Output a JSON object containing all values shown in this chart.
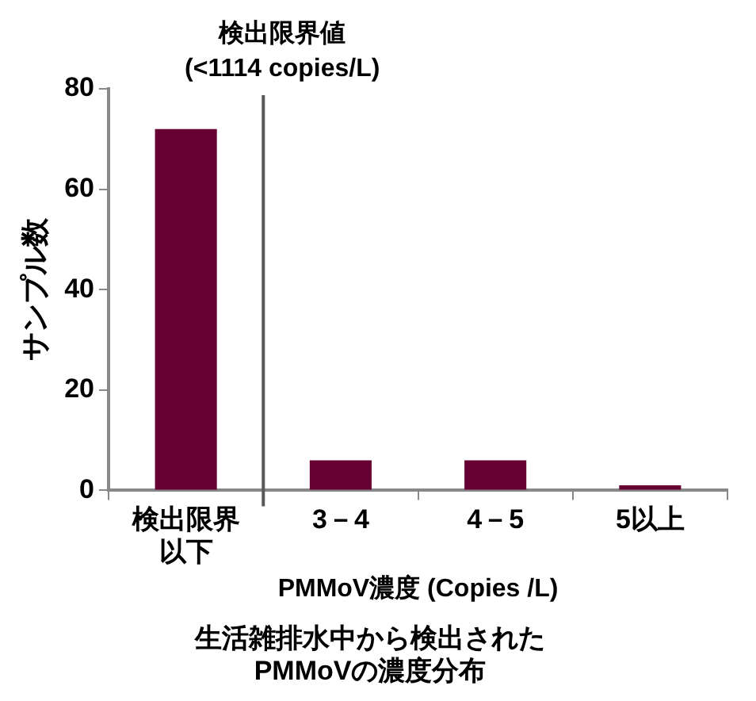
{
  "chart_data": {
    "type": "bar",
    "title": "生活雑排水中から検出された\nPMMoVの濃度分布",
    "xlabel": "PMMoV濃度 (Copies /L)",
    "ylabel": "サンプル数",
    "categories": [
      "検出限界以下",
      "3－4",
      "4－5",
      "5以上"
    ],
    "values": [
      72,
      6,
      6,
      1
    ],
    "color": "#660033",
    "ylim": [
      0,
      80
    ],
    "yticks": [
      0,
      20,
      40,
      60,
      80
    ],
    "grid": false,
    "annotations": [
      "検出限界値\n(<1114 copies/L)"
    ]
  }
}
